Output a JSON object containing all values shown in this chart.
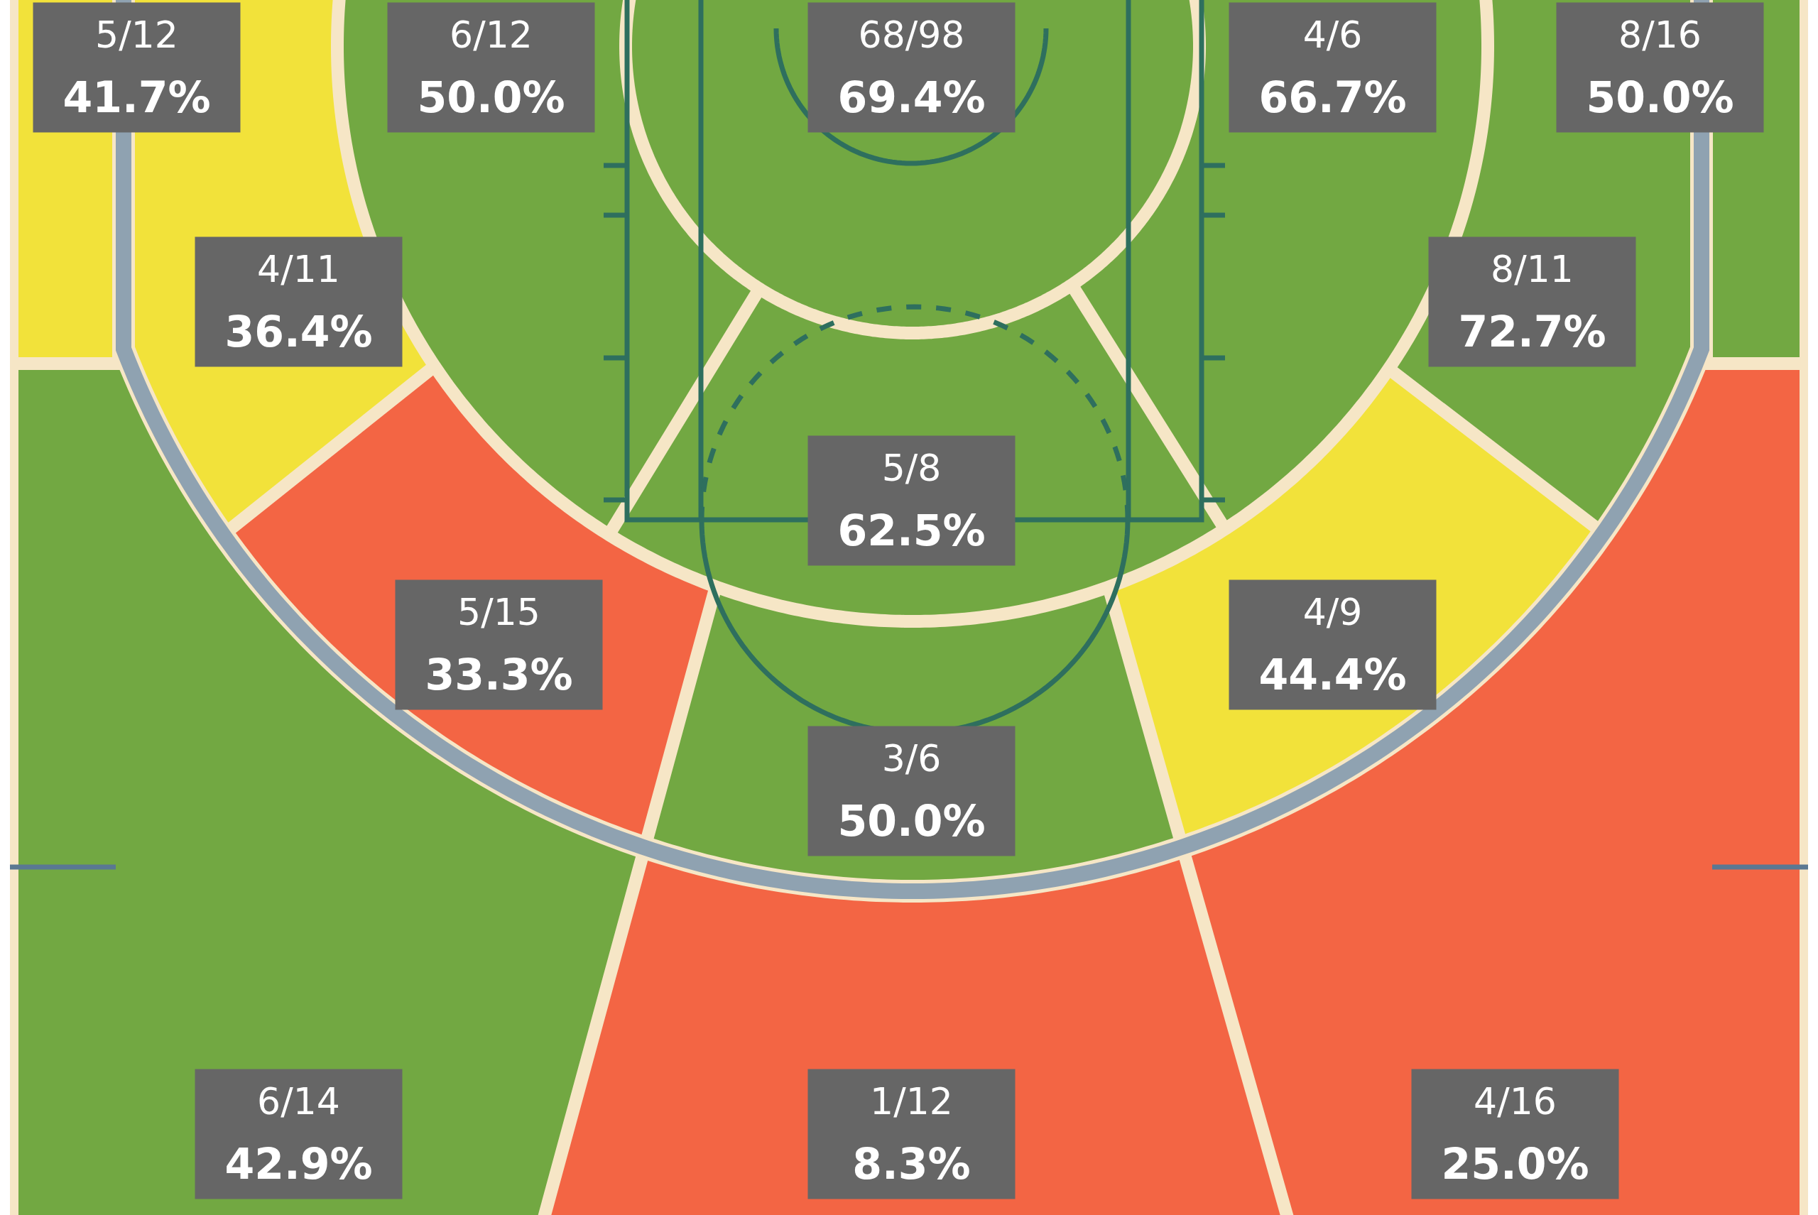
{
  "chart_data": {
    "type": "other",
    "categories": [
      null,
      null,
      null,
      null,
      null,
      null,
      null,
      null,
      null,
      null,
      null,
      null,
      null,
      null
    ],
    "values": [
      41.7,
      50.0,
      69.4,
      66.7,
      50.0,
      36.4,
      72.7,
      62.5,
      33.3,
      44.4,
      50.0,
      42.9,
      8.3,
      25.0
    ],
    "value_labels": [
      "5/12\n41.7%",
      "6/12\n50.0%",
      "68/98\n69.4%",
      "4/6\n66.7%",
      "8/16\n50.0%",
      "4/11\n36.4%",
      "8/11\n72.7%",
      "5/8\n62.5%",
      "5/15\n33.3%",
      "4/9\n44.4%",
      "3/6\n50.0%",
      "6/14\n42.9%",
      "1/12\n8.3%",
      "4/16\n25.0%"
    ],
    "colors": [
      "#f2e23a",
      "#72a842",
      "#72a842",
      "#72a842",
      "#72a842",
      "#f2e23a",
      "#72a842",
      "#72a842",
      "#f36544",
      "#f2e23a",
      "#72a842",
      "#72a842",
      "#f36544",
      "#f36544"
    ]
  }
}
